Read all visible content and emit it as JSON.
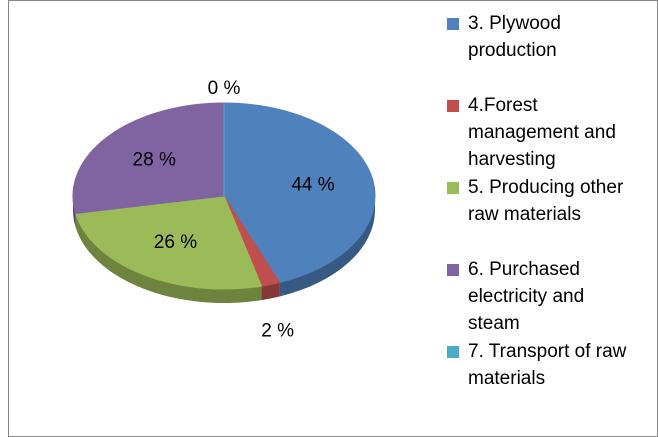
{
  "chart_data": {
    "type": "pie3d",
    "categories": [
      "3. Plywood production",
      "4.Forest management and harvesting",
      "5. Producing other raw materials",
      "6. Purchased electricity and steam",
      "7. Transport of raw materials"
    ],
    "values": [
      44,
      2,
      26,
      28,
      0
    ],
    "value_labels": [
      "44 %",
      "2 %",
      "26 %",
      "28 %",
      "0 %"
    ],
    "colors": [
      "#4f81bd",
      "#c0504d",
      "#9bbb59",
      "#8064a2",
      "#4bacc6"
    ],
    "legend": "right"
  }
}
